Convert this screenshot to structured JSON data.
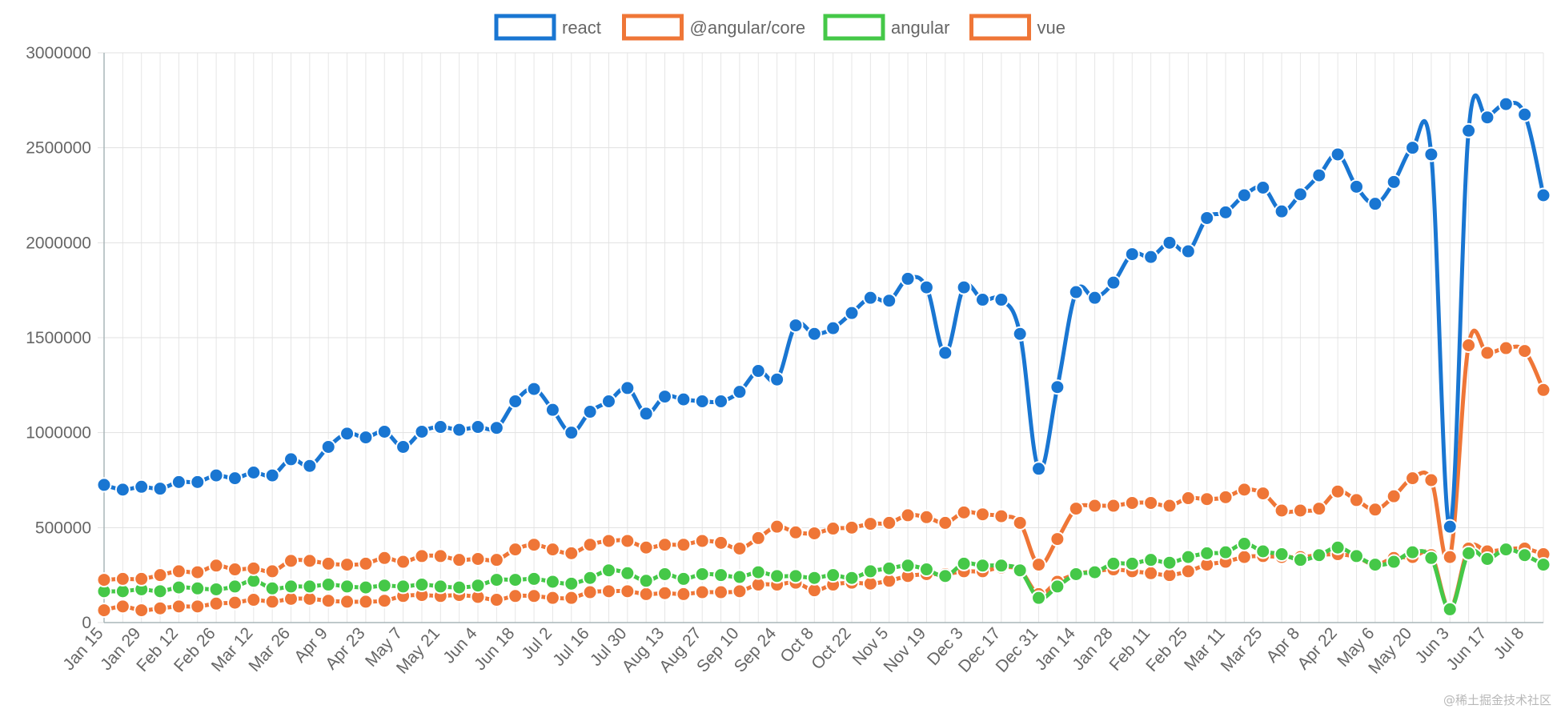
{
  "watermark": "@稀土掘金技术社区",
  "chart_data": {
    "type": "line",
    "title": "",
    "xlabel": "",
    "ylabel": "",
    "ylim": [
      0,
      3000000
    ],
    "yticks": [
      0,
      500000,
      1000000,
      1500000,
      2000000,
      2500000,
      3000000
    ],
    "grid": true,
    "legend_position": "top-center",
    "x_tick_labels": [
      "Jan 15",
      "Jan 29",
      "Feb 12",
      "Feb 26",
      "Mar 12",
      "Mar 26",
      "Apr 9",
      "Apr 23",
      "May 7",
      "May 21",
      "Jun 4",
      "Jun 18",
      "Jul 2",
      "Jul 16",
      "Jul 30",
      "Aug 13",
      "Aug 27",
      "Sep 10",
      "Sep 24",
      "Oct 8",
      "Oct 22",
      "Nov 5",
      "Nov 19",
      "Dec 3",
      "Dec 17",
      "Dec 31",
      "Jan 14",
      "Jan 28",
      "Feb 11",
      "Feb 25",
      "Mar 11",
      "Mar 25",
      "Apr 8",
      "Apr 22",
      "May 6",
      "May 20",
      "Jun 3",
      "Jun 17",
      "Jul 8"
    ],
    "x_points": 78,
    "series": [
      {
        "name": "react",
        "color": "#1976d2",
        "values": [
          725000,
          700000,
          715000,
          705000,
          740000,
          740000,
          775000,
          760000,
          790000,
          775000,
          860000,
          825000,
          925000,
          995000,
          975000,
          1005000,
          925000,
          1005000,
          1030000,
          1015000,
          1030000,
          1025000,
          1165000,
          1230000,
          1120000,
          1000000,
          1110000,
          1165000,
          1235000,
          1100000,
          1190000,
          1175000,
          1165000,
          1165000,
          1215000,
          1325000,
          1280000,
          1565000,
          1520000,
          1550000,
          1630000,
          1710000,
          1695000,
          1810000,
          1765000,
          1420000,
          1765000,
          1700000,
          1700000,
          1520000,
          810000,
          1240000,
          1740000,
          1710000,
          1790000,
          1940000,
          1925000,
          2000000,
          1955000,
          2130000,
          2160000,
          2250000,
          2290000,
          2165000,
          2255000,
          2355000,
          2465000,
          2295000,
          2205000,
          2320000,
          2500000,
          2465000,
          505000,
          2590000,
          2660000,
          2730000,
          2675000,
          2250000
        ]
      },
      {
        "name": "@angular/core",
        "color": "#ef7637",
        "values": [
          225000,
          230000,
          230000,
          250000,
          270000,
          265000,
          300000,
          280000,
          285000,
          270000,
          325000,
          325000,
          310000,
          305000,
          310000,
          340000,
          320000,
          350000,
          350000,
          330000,
          335000,
          330000,
          385000,
          410000,
          385000,
          365000,
          410000,
          430000,
          430000,
          395000,
          410000,
          410000,
          430000,
          420000,
          390000,
          445000,
          505000,
          475000,
          470000,
          495000,
          500000,
          520000,
          525000,
          565000,
          555000,
          525000,
          580000,
          570000,
          560000,
          525000,
          305000,
          440000,
          600000,
          615000,
          615000,
          630000,
          630000,
          615000,
          655000,
          650000,
          660000,
          700000,
          680000,
          590000,
          590000,
          600000,
          690000,
          645000,
          595000,
          665000,
          760000,
          750000,
          345000,
          1460000,
          1420000,
          1445000,
          1430000,
          1225000
        ]
      },
      {
        "name": "angular",
        "color": "#45c848",
        "values": [
          165000,
          165000,
          175000,
          165000,
          185000,
          180000,
          175000,
          190000,
          220000,
          180000,
          190000,
          190000,
          200000,
          190000,
          185000,
          195000,
          190000,
          200000,
          190000,
          185000,
          195000,
          225000,
          225000,
          230000,
          215000,
          205000,
          235000,
          275000,
          260000,
          220000,
          255000,
          230000,
          255000,
          250000,
          240000,
          265000,
          245000,
          245000,
          235000,
          250000,
          235000,
          270000,
          285000,
          300000,
          280000,
          245000,
          310000,
          300000,
          300000,
          275000,
          130000,
          190000,
          255000,
          265000,
          310000,
          310000,
          330000,
          315000,
          345000,
          365000,
          370000,
          415000,
          375000,
          360000,
          330000,
          355000,
          395000,
          350000,
          305000,
          320000,
          370000,
          340000,
          70000,
          365000,
          335000,
          385000,
          355000,
          305000
        ]
      },
      {
        "name": "vue",
        "color": "#ef7637",
        "values": [
          65000,
          85000,
          65000,
          75000,
          85000,
          85000,
          100000,
          105000,
          120000,
          110000,
          125000,
          125000,
          115000,
          110000,
          110000,
          115000,
          140000,
          145000,
          140000,
          145000,
          135000,
          120000,
          140000,
          140000,
          130000,
          130000,
          160000,
          165000,
          165000,
          150000,
          155000,
          150000,
          160000,
          160000,
          165000,
          200000,
          200000,
          210000,
          170000,
          200000,
          210000,
          205000,
          220000,
          245000,
          255000,
          255000,
          270000,
          270000,
          290000,
          275000,
          150000,
          215000,
          255000,
          270000,
          280000,
          270000,
          260000,
          250000,
          270000,
          305000,
          320000,
          345000,
          350000,
          345000,
          345000,
          355000,
          360000,
          345000,
          305000,
          340000,
          345000,
          355000,
          75000,
          390000,
          375000,
          385000,
          390000,
          360000
        ]
      }
    ]
  }
}
